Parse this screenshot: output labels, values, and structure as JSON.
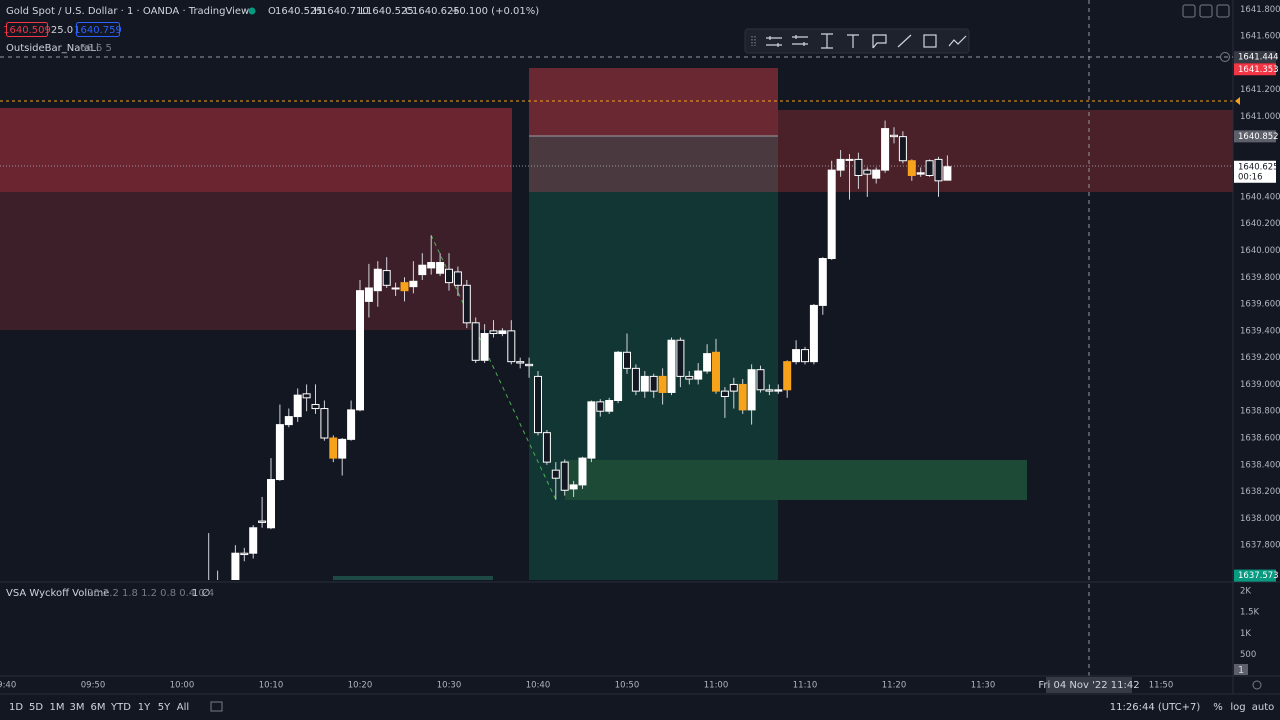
{
  "header": {
    "symbol": "Gold Spot / U.S. Dollar · 1 · OANDA · TradingView",
    "ohlc_letters": [
      "O",
      "H",
      "L",
      "C"
    ],
    "ohlc_values": [
      "1640.525",
      "1640.710",
      "1640.525",
      "1640.625"
    ],
    "change": "+0.100 (+0.01%)"
  },
  "trade": {
    "sell": "1640.509",
    "spread": "25.0",
    "buy": "1640.759"
  },
  "indicator": {
    "name": "OutsideBar_NataLi",
    "params": "66 6 5"
  },
  "chart_data": {
    "type": "candlestick",
    "up_color": "#ffffff",
    "down_color": "#131722",
    "wick_color": "#d1d4dc",
    "categories": [
      "09:40",
      null,
      null,
      null,
      null,
      null,
      null,
      null,
      null,
      null,
      "09:50",
      null,
      null,
      null,
      null,
      null,
      null,
      null,
      null,
      null,
      "10:00",
      null,
      null,
      null,
      null,
      null,
      null,
      null,
      null,
      null,
      "10:10",
      null,
      null,
      null,
      null,
      null,
      null,
      null,
      null,
      null,
      "10:20",
      null,
      null,
      null,
      null,
      null,
      null,
      null,
      null,
      null,
      "10:30",
      null,
      null,
      null,
      null,
      null,
      null,
      null,
      null,
      null,
      "10:40",
      null,
      null,
      null,
      null,
      null,
      null,
      null,
      null,
      null,
      "10:50",
      null,
      null,
      null,
      null,
      null,
      null,
      null,
      null,
      null,
      "11:00",
      null,
      null,
      null,
      null,
      null,
      null,
      null,
      null,
      null,
      "11:10",
      null,
      null,
      null,
      null,
      null,
      null,
      null,
      null,
      null,
      "11:20",
      null,
      null,
      null,
      null,
      null,
      null,
      null,
      null,
      null,
      "11:30",
      null,
      null,
      null,
      null,
      null,
      null,
      null,
      null,
      null,
      null,
      null,
      null,
      null,
      null,
      null,
      null,
      null,
      null,
      null,
      "11:50"
    ],
    "open": [
      null,
      null,
      null,
      null,
      null,
      null,
      null,
      null,
      null,
      null,
      null,
      null,
      null,
      null,
      null,
      null,
      null,
      null,
      null,
      null,
      null,
      null,
      null,
      1637.5,
      1637.45,
      1637.5,
      1637.45,
      1637.74,
      1637.74,
      1637.98,
      1637.93,
      1638.29,
      1638.7,
      1638.76,
      1638.93,
      1638.85,
      1638.82,
      1638.6,
      1638.45,
      1638.59,
      1638.81,
      1639.62,
      1639.7,
      1639.85,
      1639.72,
      1639.76,
      1639.73,
      1639.82,
      1639.87,
      1639.83,
      1639.86,
      1639.84,
      1639.74,
      1639.46,
      1639.18,
      1639.4,
      1639.38,
      1639.4,
      1639.17,
      1639.15,
      1639.06,
      1638.64,
      1638.36,
      1638.42,
      1638.22,
      1638.25,
      1638.45,
      1638.87,
      1638.8,
      1638.88,
      1639.24,
      1639.12,
      1638.95,
      1639.06,
      1639.06,
      1638.94,
      1639.33,
      1639.06,
      1639.04,
      1639.1,
      1639.24,
      1638.95,
      1639.0,
      1639.0,
      1638.81,
      1639.11,
      1638.96,
      1638.95,
      1638.96,
      1639.17,
      1639.26,
      1639.17,
      1639.59,
      1639.94,
      1640.6,
      1640.68,
      1640.68,
      1640.6,
      1640.54,
      1640.6,
      1640.86,
      1640.85,
      1640.67,
      1640.57,
      1640.67,
      1640.68,
      1640.525,
      null,
      null,
      null,
      null,
      null,
      null,
      null,
      null,
      null,
      null,
      null,
      null,
      null,
      null,
      null,
      null,
      null,
      null,
      null,
      null,
      null,
      null,
      null,
      null
    ],
    "high": [
      null,
      null,
      null,
      null,
      null,
      null,
      null,
      null,
      null,
      null,
      null,
      null,
      null,
      null,
      null,
      null,
      null,
      null,
      null,
      null,
      null,
      null,
      null,
      1637.89,
      1637.61,
      1637.52,
      1637.8,
      1637.78,
      1637.95,
      1638.16,
      1638.45,
      1638.85,
      1638.82,
      1638.97,
      1639.0,
      1639.0,
      1638.88,
      1638.62,
      1638.6,
      1638.88,
      1639.78,
      1639.9,
      1639.92,
      1639.95,
      1639.76,
      1639.8,
      1639.92,
      1639.98,
      1640.11,
      1639.98,
      1639.98,
      1639.88,
      1639.78,
      1639.5,
      1639.45,
      1639.48,
      1639.42,
      1639.48,
      1639.2,
      1639.2,
      1639.1,
      1638.66,
      1638.42,
      1638.44,
      1638.28,
      1638.46,
      1638.88,
      1638.89,
      1638.9,
      1639.25,
      1639.38,
      1639.15,
      1639.1,
      1639.08,
      1639.12,
      1639.35,
      1639.35,
      1639.1,
      1639.16,
      1639.3,
      1639.34,
      1638.98,
      1639.05,
      1639.04,
      1639.15,
      1639.14,
      1639.0,
      1639.0,
      1639.18,
      1639.33,
      1639.28,
      1639.6,
      1639.95,
      1640.67,
      1640.75,
      1640.72,
      1640.73,
      1640.62,
      1640.62,
      1640.97,
      1640.92,
      1640.89,
      1640.68,
      1640.62,
      1640.68,
      1640.7,
      1640.71,
      null,
      null,
      null,
      null,
      null,
      null,
      null,
      null,
      null,
      null,
      null,
      null,
      null,
      null,
      null,
      null,
      null,
      null,
      null,
      null,
      null,
      null,
      null,
      null
    ],
    "low": [
      null,
      null,
      null,
      null,
      null,
      null,
      null,
      null,
      null,
      null,
      null,
      null,
      null,
      null,
      null,
      null,
      null,
      null,
      null,
      null,
      null,
      null,
      null,
      1637.3,
      1637.4,
      1637.35,
      1637.44,
      1637.68,
      1637.7,
      1637.93,
      1637.92,
      1638.28,
      1638.68,
      1638.72,
      1638.8,
      1638.78,
      1638.58,
      1638.42,
      1638.32,
      1638.58,
      1638.8,
      1639.5,
      1639.58,
      1639.72,
      1639.66,
      1639.62,
      1639.68,
      1639.78,
      1639.82,
      1639.81,
      1639.7,
      1639.66,
      1639.42,
      1639.16,
      1639.16,
      1639.35,
      1639.36,
      1639.15,
      1639.12,
      1639.05,
      1638.62,
      1638.4,
      1638.14,
      1638.17,
      1638.16,
      1638.22,
      1638.42,
      1638.76,
      1638.78,
      1638.86,
      1639.08,
      1638.92,
      1638.9,
      1638.9,
      1638.85,
      1638.92,
      1638.98,
      1639.0,
      1639.0,
      1639.08,
      1638.93,
      1638.75,
      1638.82,
      1638.78,
      1638.7,
      1638.94,
      1638.92,
      1638.93,
      1638.9,
      1639.15,
      1639.15,
      1639.15,
      1639.52,
      1639.93,
      1640.55,
      1640.38,
      1640.46,
      1640.4,
      1640.5,
      1640.58,
      1640.8,
      1640.65,
      1640.52,
      1640.55,
      1640.55,
      1640.4,
      1640.525,
      null,
      null,
      null,
      null,
      null,
      null,
      null,
      null,
      null,
      null,
      null,
      null,
      null,
      null,
      null,
      null,
      null,
      null,
      null,
      null,
      null,
      null,
      null,
      null
    ],
    "close": [
      null,
      null,
      null,
      null,
      null,
      null,
      null,
      null,
      null,
      null,
      null,
      null,
      null,
      null,
      null,
      null,
      null,
      null,
      null,
      null,
      null,
      null,
      null,
      1637.45,
      1637.5,
      1637.45,
      1637.74,
      1637.73,
      1637.93,
      1637.97,
      1638.29,
      1638.7,
      1638.76,
      1638.92,
      1638.9,
      1638.82,
      1638.6,
      1638.45,
      1638.59,
      1638.81,
      1639.7,
      1639.72,
      1639.86,
      1639.74,
      1639.72,
      1639.7,
      1639.77,
      1639.89,
      1639.91,
      1639.91,
      1639.76,
      1639.74,
      1639.46,
      1639.18,
      1639.38,
      1639.38,
      1639.4,
      1639.17,
      1639.16,
      1639.14,
      1638.64,
      1638.42,
      1638.3,
      1638.21,
      1638.25,
      1638.45,
      1638.87,
      1638.8,
      1638.88,
      1639.24,
      1639.12,
      1638.95,
      1639.06,
      1638.95,
      1638.94,
      1639.33,
      1639.06,
      1639.04,
      1639.1,
      1639.23,
      1638.95,
      1638.91,
      1638.95,
      1638.81,
      1639.11,
      1638.96,
      1638.95,
      1638.96,
      1639.17,
      1639.26,
      1639.17,
      1639.59,
      1639.94,
      1640.6,
      1640.68,
      1640.68,
      1640.56,
      1640.57,
      1640.6,
      1640.91,
      1640.85,
      1640.67,
      1640.56,
      1640.58,
      1640.56,
      1640.52,
      1640.625,
      null,
      null,
      null,
      null,
      null,
      null,
      null,
      null,
      null,
      null,
      null,
      null,
      null,
      null,
      null,
      null,
      null,
      null,
      null,
      null,
      null,
      null,
      null,
      null
    ],
    "colors": [
      null,
      null,
      null,
      null,
      null,
      null,
      null,
      null,
      null,
      null,
      null,
      null,
      null,
      null,
      null,
      null,
      null,
      null,
      null,
      null,
      null,
      null,
      null,
      null,
      null,
      null,
      null,
      null,
      null,
      null,
      null,
      null,
      null,
      null,
      null,
      null,
      null,
      "#f7a21b",
      null,
      null,
      null,
      null,
      null,
      null,
      null,
      "#f7a21b",
      null,
      null,
      null,
      null,
      null,
      null,
      null,
      null,
      null,
      null,
      null,
      null,
      null,
      null,
      null,
      null,
      null,
      null,
      null,
      null,
      null,
      null,
      null,
      null,
      null,
      null,
      null,
      null,
      "#f7a21b",
      null,
      null,
      null,
      null,
      null,
      "#f7a21b",
      null,
      null,
      "#f7a21b",
      null,
      null,
      null,
      null,
      "#f7a21b",
      null,
      null,
      null,
      null,
      null,
      null,
      null,
      null,
      null,
      null,
      null,
      null,
      null,
      "#f7a21b",
      null,
      null,
      null,
      null,
      null,
      null,
      null,
      null,
      null,
      null,
      null,
      null,
      null,
      null,
      null,
      null,
      null,
      null,
      null,
      null,
      null,
      null,
      null,
      null,
      null,
      null,
      null,
      null,
      null
    ],
    "ylim": [
      1637.54,
      1641.87
    ],
    "yticks": [
      {
        "value": 1641.8,
        "label": "1641.800"
      },
      {
        "value": 1641.6,
        "label": "1641.600"
      },
      {
        "value": 1641.2,
        "label": "1641.200"
      },
      {
        "value": 1641.0,
        "label": "1641.000"
      },
      {
        "value": 1640.4,
        "label": "1640.400"
      },
      {
        "value": 1640.2,
        "label": "1640.200"
      },
      {
        "value": 1640.0,
        "label": "1640.000"
      },
      {
        "value": 1639.8,
        "label": "1639.800"
      },
      {
        "value": 1639.6,
        "label": "1639.600"
      },
      {
        "value": 1639.4,
        "label": "1639.400"
      },
      {
        "value": 1639.2,
        "label": "1639.200"
      },
      {
        "value": 1639.0,
        "label": "1639.000"
      },
      {
        "value": 1638.8,
        "label": "1638.800"
      },
      {
        "value": 1638.6,
        "label": "1638.600"
      },
      {
        "value": 1638.4,
        "label": "1638.400"
      },
      {
        "value": 1638.2,
        "label": "1638.200"
      },
      {
        "value": 1638.0,
        "label": "1638.000"
      },
      {
        "value": 1637.8,
        "label": "1637.800"
      }
    ],
    "grid": false,
    "badges": [
      {
        "value": 1641.353,
        "label": "1641.353",
        "color": "#f23645"
      },
      {
        "value": 1640.852,
        "label": "1640.852",
        "color": "#5d606b"
      },
      {
        "value": 1637.573,
        "label": "1637.573",
        "color": "#089981"
      }
    ],
    "last_price": {
      "value": 1640.625,
      "label": "1640.625",
      "countdown": "00:16"
    },
    "crosshair": {
      "price": {
        "value": 1641.444,
        "label": "1641.444"
      },
      "time": "Fri 04 Nov '22 11:42"
    }
  },
  "volume": {
    "name": "VSA Wyckoff Volume",
    "params": "20 2.2 1.8 1.2 0.8 0.4 0.4",
    "extra": "1 ∅",
    "ylim": [
      0,
      2160
    ],
    "yticks": [
      {
        "value": 2000,
        "label": "2K"
      },
      {
        "value": 1500,
        "label": "1.5K"
      },
      {
        "value": 1000,
        "label": "1K"
      },
      {
        "value": 500,
        "label": "500"
      }
    ],
    "badge": "1"
  },
  "footer": {
    "ranges": [
      "1D",
      "5D",
      "1M",
      "3M",
      "6M",
      "YTD",
      "1Y",
      "5Y",
      "All"
    ],
    "clock": "11:26:44 (UTC+7)",
    "options": [
      "%",
      "log",
      "auto"
    ]
  }
}
